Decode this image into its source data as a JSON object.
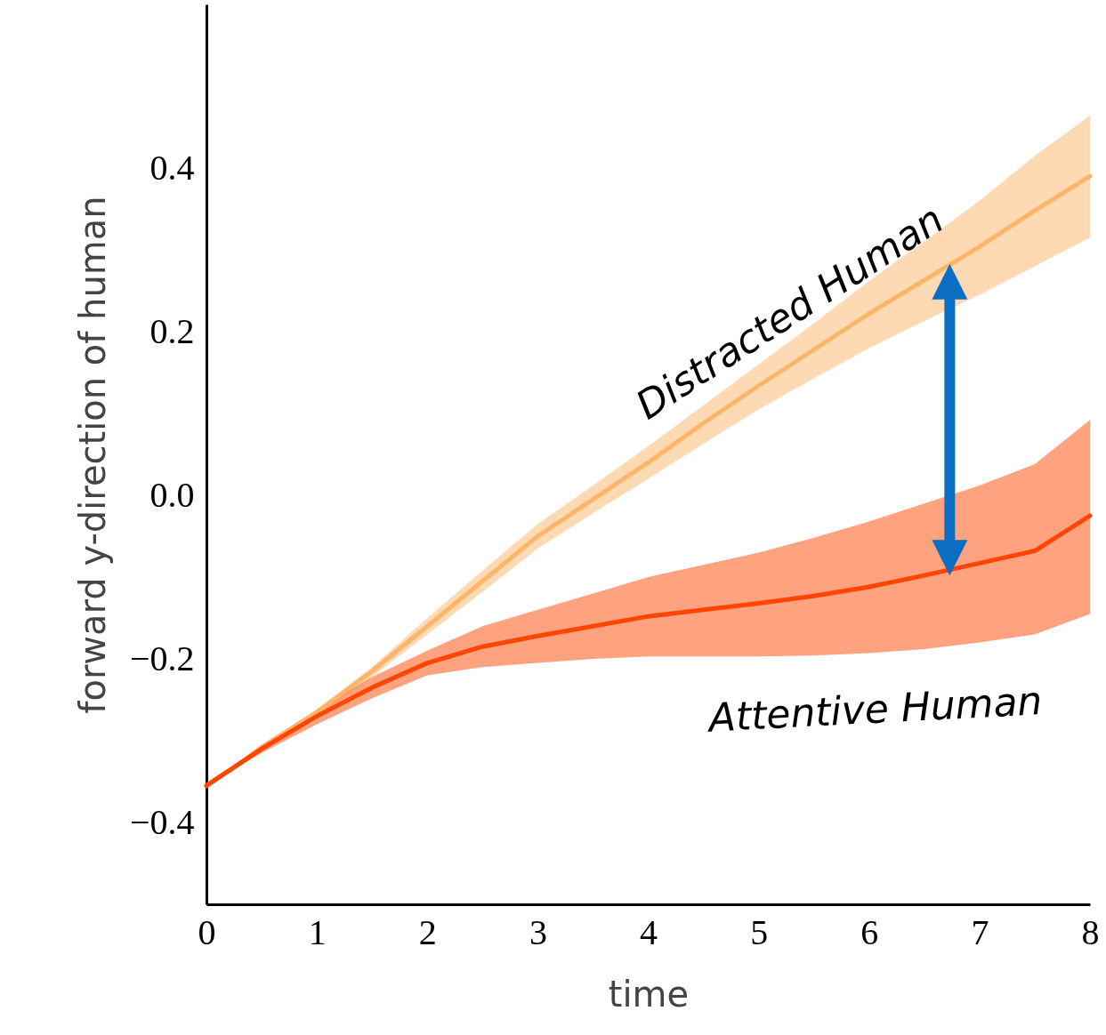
{
  "chart_data": {
    "type": "line",
    "xlabel": "time",
    "ylabel": "forward y-direction of human",
    "x": [
      0,
      0.5,
      1,
      1.5,
      2,
      2.5,
      3,
      3.5,
      4,
      4.5,
      5,
      5.5,
      6,
      6.5,
      7,
      7.5,
      8
    ],
    "xlim": [
      0,
      8
    ],
    "xticks": [
      0,
      1,
      2,
      3,
      4,
      5,
      6,
      7,
      8
    ],
    "ylim": [
      -0.5,
      0.6
    ],
    "yticks": [
      {
        "value": -0.4,
        "label": "−0.4"
      },
      {
        "value": -0.2,
        "label": "−0.2"
      },
      {
        "value": 0,
        "label": "0.0"
      },
      0.2,
      0.4
    ],
    "series": [
      {
        "name": "Distracted Human",
        "color": "#fdb56a",
        "values": [
          -0.355,
          -0.31,
          -0.265,
          -0.215,
          -0.16,
          -0.105,
          -0.05,
          -0.005,
          0.04,
          0.088,
          0.134,
          0.178,
          0.222,
          0.263,
          0.304,
          0.348,
          0.39
        ],
        "lower": [
          -0.355,
          -0.312,
          -0.268,
          -0.222,
          -0.17,
          -0.118,
          -0.065,
          -0.022,
          0.02,
          0.063,
          0.105,
          0.143,
          0.18,
          0.213,
          0.245,
          0.28,
          0.315
        ],
        "upper": [
          -0.355,
          -0.308,
          -0.262,
          -0.21,
          -0.15,
          -0.092,
          -0.035,
          0.012,
          0.06,
          0.11,
          0.16,
          0.21,
          0.262,
          0.31,
          0.36,
          0.415,
          0.464
        ]
      },
      {
        "name": "Attentive Human",
        "color": "#ff4500",
        "values": [
          -0.355,
          -0.31,
          -0.27,
          -0.235,
          -0.205,
          -0.185,
          -0.172,
          -0.16,
          -0.148,
          -0.14,
          -0.132,
          -0.123,
          -0.112,
          -0.098,
          -0.083,
          -0.068,
          -0.025
        ],
        "lower": [
          -0.355,
          -0.315,
          -0.28,
          -0.248,
          -0.22,
          -0.21,
          -0.205,
          -0.2,
          -0.197,
          -0.197,
          -0.197,
          -0.196,
          -0.193,
          -0.188,
          -0.18,
          -0.17,
          -0.145
        ],
        "upper": [
          -0.355,
          -0.305,
          -0.262,
          -0.222,
          -0.19,
          -0.16,
          -0.14,
          -0.12,
          -0.1,
          -0.085,
          -0.07,
          -0.052,
          -0.032,
          -0.01,
          0.012,
          0.038,
          0.092
        ]
      }
    ]
  }
}
